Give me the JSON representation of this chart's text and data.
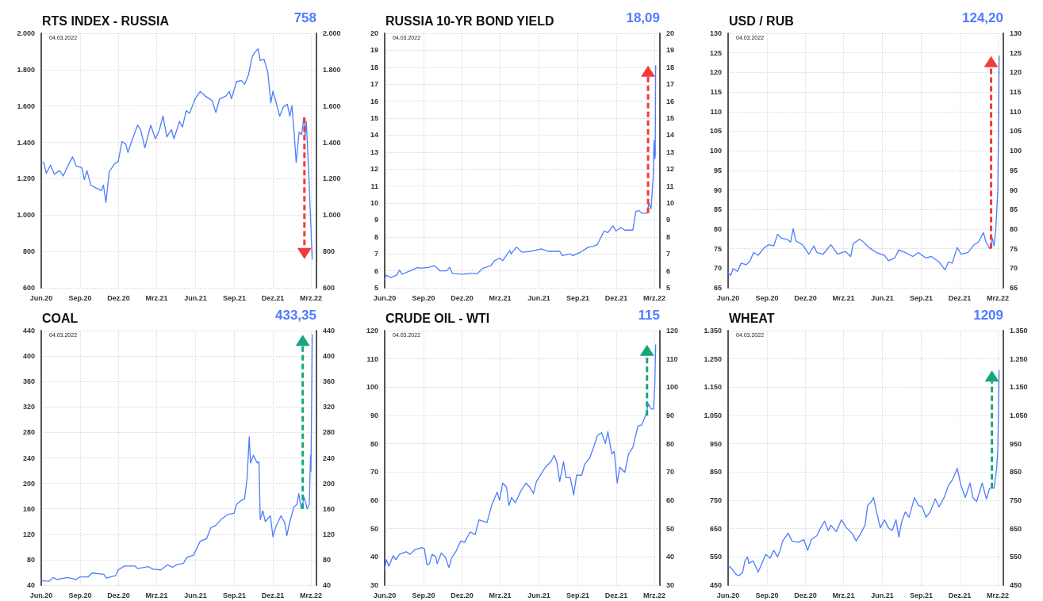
{
  "chart_data": [
    {
      "type": "line",
      "title": "RTS INDEX - RUSSIA",
      "annotations": [
        "758",
        "04.03.2022"
      ],
      "grid": true,
      "xlim": [
        "2020-06-01",
        "2022-03-14"
      ],
      "xticks": [
        {
          "value": "2020-06-01",
          "label": "Jun.20"
        },
        {
          "value": "2020-09-01",
          "label": "Sep.20"
        },
        {
          "value": "2020-12-01",
          "label": "Dez.20"
        },
        {
          "value": "2021-03-01",
          "label": "Mrz.21"
        },
        {
          "value": "2021-06-01",
          "label": "Jun.21"
        },
        {
          "value": "2021-09-01",
          "label": "Sep.21"
        },
        {
          "value": "2021-12-01",
          "label": "Dez.21"
        },
        {
          "value": "2022-03-01",
          "label": "Mrz.22"
        }
      ],
      "ylim": [
        600,
        2000
      ],
      "yticks": [
        600,
        800,
        {
          "value": 1000,
          "label": "1.000"
        },
        {
          "value": 1200,
          "label": "1.200"
        },
        {
          "value": 1400,
          "label": "1.400"
        },
        {
          "value": 1600,
          "label": "1.600"
        },
        {
          "value": 1800,
          "label": "1.800"
        },
        {
          "value": 2000,
          "label": "2.000"
        }
      ],
      "y2lim": [
        600,
        2000
      ],
      "y2ticks": [
        600,
        800,
        {
          "value": 1000,
          "label": "1.000"
        },
        {
          "value": 1200,
          "label": "1.200"
        },
        {
          "value": 1400,
          "label": "1.400"
        },
        {
          "value": 1600,
          "label": "1.600"
        },
        {
          "value": 1800,
          "label": "1.800"
        },
        {
          "value": 2000,
          "label": "2.000"
        }
      ],
      "series": [
        {
          "color": "#4d7cff",
          "x": [
            "2020-06-01",
            "2020-06-07",
            "2020-06-13",
            "2020-06-23",
            "2020-07-02",
            "2020-07-14",
            "2020-07-23",
            "2020-08-05",
            "2020-08-14",
            "2020-08-23",
            "2020-09-05",
            "2020-09-11",
            "2020-09-17",
            "2020-09-26",
            "2020-10-08",
            "2020-10-21",
            "2020-10-26",
            "2020-11-01",
            "2020-11-09",
            "2020-11-21",
            "2020-11-30",
            "2020-12-09",
            "2020-12-18",
            "2020-12-23",
            "2020-12-31",
            "2021-01-15",
            "2021-01-22",
            "2021-02-01",
            "2021-02-15",
            "2021-02-26",
            "2021-03-07",
            "2021-03-16",
            "2021-03-25",
            "2021-04-05",
            "2021-04-11",
            "2021-04-24",
            "2021-05-01",
            "2021-05-10",
            "2021-05-18",
            "2021-05-31",
            "2021-06-12",
            "2021-06-24",
            "2021-07-10",
            "2021-07-19",
            "2021-07-28",
            "2021-08-12",
            "2021-08-20",
            "2021-08-25",
            "2021-09-06",
            "2021-09-18",
            "2021-09-25",
            "2021-10-04",
            "2021-10-13",
            "2021-10-19",
            "2021-10-27",
            "2021-11-01",
            "2021-11-10",
            "2021-11-19",
            "2021-11-26",
            "2021-12-01",
            "2021-12-08",
            "2021-12-17",
            "2021-12-26",
            "2022-01-04",
            "2022-01-10",
            "2022-01-15",
            "2022-01-20",
            "2022-01-25",
            "2022-02-01",
            "2022-02-07",
            "2022-02-12",
            "2022-02-15",
            "2022-02-18",
            "2022-02-24",
            "2022-03-04"
          ],
          "values": [
            1290,
            1290,
            1230,
            1275,
            1225,
            1245,
            1215,
            1280,
            1320,
            1270,
            1260,
            1195,
            1245,
            1165,
            1150,
            1135,
            1165,
            1070,
            1240,
            1280,
            1295,
            1405,
            1390,
            1345,
            1400,
            1495,
            1470,
            1370,
            1495,
            1420,
            1465,
            1545,
            1430,
            1470,
            1420,
            1515,
            1485,
            1575,
            1560,
            1640,
            1680,
            1655,
            1630,
            1565,
            1640,
            1655,
            1680,
            1640,
            1735,
            1740,
            1720,
            1770,
            1870,
            1895,
            1915,
            1850,
            1857,
            1785,
            1617,
            1682,
            1624,
            1544,
            1595,
            1610,
            1544,
            1602,
            1457,
            1289,
            1457,
            1443,
            1537,
            1435,
            1515,
            1209,
            758
          ]
        }
      ]
    },
    {
      "type": "line",
      "title": "RUSSIA 10-YR BOND YIELD",
      "annotations": [
        "18,09",
        "04.03.2022"
      ],
      "grid": true,
      "xlim": [
        "2020-06-01",
        "2022-03-14"
      ],
      "xticks": [
        {
          "value": "2020-06-01",
          "label": "Jun.20"
        },
        {
          "value": "2020-09-01",
          "label": "Sep.20"
        },
        {
          "value": "2020-12-01",
          "label": "Dez.20"
        },
        {
          "value": "2021-03-01",
          "label": "Mrz.21"
        },
        {
          "value": "2021-06-01",
          "label": "Jun.21"
        },
        {
          "value": "2021-09-01",
          "label": "Sep.21"
        },
        {
          "value": "2021-12-01",
          "label": "Dez.21"
        },
        {
          "value": "2022-03-01",
          "label": "Mrz.22"
        }
      ],
      "ylim": [
        5,
        20
      ],
      "yticks": [
        5,
        6,
        7,
        8,
        9,
        10,
        11,
        12,
        13,
        14,
        15,
        16,
        17,
        18,
        19,
        20
      ],
      "y2lim": [
        5,
        20
      ],
      "y2ticks": [
        5,
        6,
        7,
        8,
        9,
        10,
        11,
        12,
        13,
        14,
        15,
        16,
        17,
        18,
        19,
        20
      ],
      "series": [
        {
          "color": "#4d7cff",
          "x": [
            "2020-06-01",
            "2020-06-05",
            "2020-06-15",
            "2020-06-30",
            "2020-07-06",
            "2020-07-12",
            "2020-07-31",
            "2020-08-18",
            "2020-08-24",
            "2020-09-12",
            "2020-09-27",
            "2020-10-10",
            "2020-10-25",
            "2020-11-02",
            "2020-11-08",
            "2020-12-04",
            "2020-12-19",
            "2021-01-07",
            "2021-01-19",
            "2021-02-07",
            "2021-02-16",
            "2021-02-28",
            "2021-03-07",
            "2021-03-24",
            "2021-03-27",
            "2021-04-09",
            "2021-04-22",
            "2021-05-13",
            "2021-06-07",
            "2021-06-22",
            "2021-07-20",
            "2021-07-26",
            "2021-08-14",
            "2021-08-20",
            "2021-09-07",
            "2021-09-26",
            "2021-10-08",
            "2021-10-17",
            "2021-11-02",
            "2021-11-11",
            "2021-11-23",
            "2021-11-30",
            "2021-12-12",
            "2021-12-21",
            "2022-01-09",
            "2022-01-16",
            "2022-01-24",
            "2022-01-30",
            "2022-02-12",
            "2022-02-16",
            "2022-02-21",
            "2022-02-26",
            "2022-02-28",
            "2022-03-02",
            "2022-03-03",
            "2022-03-04"
          ],
          "values": [
            5.5,
            5.75,
            5.6,
            5.75,
            6.05,
            5.8,
            6,
            6.2,
            6.15,
            6.2,
            6.3,
            6,
            6,
            6.2,
            5.85,
            5.8,
            5.85,
            5.85,
            6.15,
            6.3,
            6.6,
            6.75,
            6.6,
            7.2,
            7,
            7.4,
            7.1,
            7.15,
            7.3,
            7.15,
            7.15,
            6.9,
            7,
            6.9,
            7.1,
            7.4,
            7.45,
            7.55,
            8.35,
            8.25,
            8.65,
            8.35,
            8.55,
            8.4,
            8.4,
            9.5,
            9.55,
            9.4,
            9.4,
            10,
            9.65,
            11.5,
            13.7,
            12.6,
            12.8,
            18.09
          ]
        }
      ]
    },
    {
      "type": "line",
      "title": "USD / RUB",
      "annotations": [
        "124,20",
        "04.03.2022"
      ],
      "grid": true,
      "xlim": [
        "2020-06-01",
        "2022-03-14"
      ],
      "xticks": [
        {
          "value": "2020-06-01",
          "label": "Jun.20"
        },
        {
          "value": "2020-09-01",
          "label": "Sep.20"
        },
        {
          "value": "2020-12-01",
          "label": "Dez.20"
        },
        {
          "value": "2021-03-01",
          "label": "Mrz.21"
        },
        {
          "value": "2021-06-01",
          "label": "Jun.21"
        },
        {
          "value": "2021-09-01",
          "label": "Sep.21"
        },
        {
          "value": "2021-12-01",
          "label": "Dez.21"
        },
        {
          "value": "2022-03-01",
          "label": "Mrz.22"
        }
      ],
      "ylim": [
        65,
        130
      ],
      "yticks": [
        65,
        70,
        75,
        80,
        85,
        90,
        95,
        100,
        105,
        110,
        115,
        120,
        125,
        130
      ],
      "y2lim": [
        65,
        130
      ],
      "y2ticks": [
        65,
        70,
        75,
        80,
        85,
        90,
        95,
        100,
        105,
        110,
        115,
        120,
        125,
        130
      ],
      "series": [
        {
          "color": "#4d7cff",
          "x": [
            "2020-06-01",
            "2020-06-07",
            "2020-06-13",
            "2020-06-23",
            "2020-07-02",
            "2020-07-14",
            "2020-07-23",
            "2020-07-31",
            "2020-08-11",
            "2020-08-26",
            "2020-09-05",
            "2020-09-17",
            "2020-09-26",
            "2020-10-05",
            "2020-10-18",
            "2020-10-27",
            "2020-11-02",
            "2020-11-08",
            "2020-11-24",
            "2020-12-09",
            "2020-12-21",
            "2020-12-28",
            "2021-01-12",
            "2021-01-30",
            "2021-02-15",
            "2021-03-05",
            "2021-03-18",
            "2021-03-24",
            "2021-04-08",
            "2021-04-17",
            "2021-04-30",
            "2021-05-18",
            "2021-06-06",
            "2021-06-15",
            "2021-06-30",
            "2021-07-10",
            "2021-07-25",
            "2021-08-12",
            "2021-08-25",
            "2021-09-12",
            "2021-09-25",
            "2021-10-13",
            "2021-10-27",
            "2021-11-04",
            "2021-11-13",
            "2021-11-25",
            "2021-12-04",
            "2021-12-20",
            "2022-01-04",
            "2022-01-14",
            "2022-01-26",
            "2022-02-01",
            "2022-02-10",
            "2022-02-16",
            "2022-02-20",
            "2022-02-24",
            "2022-03-01",
            "2022-03-03",
            "2022-03-04"
          ],
          "values": [
            68.9,
            68.2,
            69.9,
            69.2,
            71.3,
            70.9,
            71.9,
            74,
            73.3,
            75.3,
            76,
            75.7,
            78.7,
            77.7,
            77.4,
            76.7,
            80.1,
            77,
            76,
            73.6,
            75.7,
            74,
            73.6,
            76,
            73.6,
            74.3,
            73,
            76.3,
            77.4,
            76.7,
            75.3,
            74,
            73.3,
            71.9,
            72.6,
            74.7,
            74,
            73,
            74,
            72.6,
            73,
            71.6,
            69.6,
            71.6,
            71.3,
            75.3,
            73.6,
            74,
            76,
            76.7,
            79.1,
            76.7,
            75,
            77.7,
            75.7,
            79.7,
            89.9,
            110.2,
            124.2
          ]
        }
      ]
    },
    {
      "type": "line",
      "title": "COAL",
      "annotations": [
        "433,35",
        "04.03.2022"
      ],
      "grid": true,
      "xlim": [
        "2020-06-01",
        "2022-03-14"
      ],
      "xticks": [
        {
          "value": "2020-06-01",
          "label": "Jun.20"
        },
        {
          "value": "2020-09-01",
          "label": "Sep.20"
        },
        {
          "value": "2020-12-01",
          "label": "Dez.20"
        },
        {
          "value": "2021-03-01",
          "label": "Mrz.21"
        },
        {
          "value": "2021-06-01",
          "label": "Jun.21"
        },
        {
          "value": "2021-09-01",
          "label": "Sep.21"
        },
        {
          "value": "2021-12-01",
          "label": "Dez.21"
        },
        {
          "value": "2022-03-01",
          "label": "Mrz.22"
        }
      ],
      "ylim": [
        40,
        440
      ],
      "yticks": [
        40,
        80,
        120,
        160,
        200,
        240,
        280,
        320,
        360,
        400,
        440
      ],
      "y2lim": [
        40,
        440
      ],
      "y2ticks": [
        40,
        80,
        120,
        160,
        200,
        240,
        280,
        320,
        360,
        400,
        440
      ],
      "series": [
        {
          "color": "#4d7cff",
          "x": [
            "2020-06-01",
            "2020-06-19",
            "2020-06-29",
            "2020-07-08",
            "2020-08-02",
            "2020-08-23",
            "2020-09-01",
            "2020-09-20",
            "2020-09-29",
            "2020-10-27",
            "2020-11-02",
            "2020-11-24",
            "2020-11-30",
            "2020-12-15",
            "2021-01-09",
            "2021-01-15",
            "2021-02-09",
            "2021-02-21",
            "2021-03-11",
            "2021-03-27",
            "2021-04-08",
            "2021-04-17",
            "2021-05-03",
            "2021-05-12",
            "2021-05-27",
            "2021-06-12",
            "2021-06-27",
            "2021-07-07",
            "2021-07-19",
            "2021-07-31",
            "2021-08-16",
            "2021-08-31",
            "2021-09-06",
            "2021-09-15",
            "2021-09-25",
            "2021-10-01",
            "2021-10-06",
            "2021-10-09",
            "2021-10-16",
            "2021-10-25",
            "2021-10-29",
            "2021-11-01",
            "2021-11-07",
            "2021-11-13",
            "2021-11-25",
            "2021-12-01",
            "2021-12-08",
            "2021-12-20",
            "2021-12-29",
            "2022-01-03",
            "2022-01-10",
            "2022-01-20",
            "2022-01-27",
            "2022-01-31",
            "2022-02-06",
            "2022-02-13",
            "2022-02-20",
            "2022-02-25",
            "2022-02-28",
            "2022-03-01",
            "2022-03-04"
          ],
          "values": [
            47,
            46,
            52,
            49,
            52,
            49,
            53,
            53,
            59,
            57,
            51,
            55,
            64,
            70,
            70,
            66,
            69,
            65,
            64,
            72,
            68,
            72,
            74,
            84,
            87,
            109,
            113,
            130,
            134,
            143,
            151,
            153,
            167,
            172,
            176,
            209,
            273,
            232,
            244,
            232,
            234,
            143,
            157,
            140,
            149,
            116,
            132,
            149,
            138,
            118,
            140,
            163,
            167,
            184,
            160,
            178,
            160,
            167,
            244,
            219,
            433.35
          ]
        }
      ]
    },
    {
      "type": "line",
      "title": "CRUDE OIL - WTI",
      "annotations": [
        "115",
        "04.03.2022"
      ],
      "grid": true,
      "xlim": [
        "2020-06-01",
        "2022-03-14"
      ],
      "xticks": [
        {
          "value": "2020-06-01",
          "label": "Jun.20"
        },
        {
          "value": "2020-09-01",
          "label": "Sep.20"
        },
        {
          "value": "2020-12-01",
          "label": "Dez.20"
        },
        {
          "value": "2021-03-01",
          "label": "Mrz.21"
        },
        {
          "value": "2021-06-01",
          "label": "Jun.21"
        },
        {
          "value": "2021-09-01",
          "label": "Sep.21"
        },
        {
          "value": "2021-12-01",
          "label": "Dez.21"
        },
        {
          "value": "2022-03-01",
          "label": "Mrz.22"
        }
      ],
      "ylim": [
        30,
        120
      ],
      "yticks": [
        30,
        40,
        50,
        60,
        70,
        80,
        90,
        100,
        110,
        120
      ],
      "y2lim": [
        30,
        120
      ],
      "y2ticks": [
        30,
        40,
        50,
        60,
        70,
        80,
        90,
        100,
        110,
        120
      ],
      "series": [
        {
          "color": "#4d7cff",
          "x": [
            "2020-06-01",
            "2020-06-05",
            "2020-06-11",
            "2020-06-21",
            "2020-06-27",
            "2020-07-06",
            "2020-07-22",
            "2020-07-31",
            "2020-08-12",
            "2020-08-28",
            "2020-09-03",
            "2020-09-09",
            "2020-09-15",
            "2020-09-21",
            "2020-09-30",
            "2020-10-03",
            "2020-10-13",
            "2020-10-22",
            "2020-10-31",
            "2020-11-06",
            "2020-11-16",
            "2020-11-28",
            "2020-12-07",
            "2020-12-20",
            "2021-01-01",
            "2021-01-10",
            "2021-01-29",
            "2021-02-10",
            "2021-02-22",
            "2021-02-28",
            "2021-03-07",
            "2021-03-16",
            "2021-03-22",
            "2021-03-28",
            "2021-04-06",
            "2021-04-19",
            "2021-05-01",
            "2021-05-10",
            "2021-05-19",
            "2021-05-26",
            "2021-06-16",
            "2021-06-29",
            "2021-07-07",
            "2021-07-13",
            "2021-07-20",
            "2021-07-29",
            "2021-08-04",
            "2021-08-14",
            "2021-08-22",
            "2021-08-29",
            "2021-09-10",
            "2021-09-17",
            "2021-09-29",
            "2021-10-08",
            "2021-10-17",
            "2021-10-27",
            "2021-11-05",
            "2021-11-11",
            "2021-11-20",
            "2021-11-26",
            "2021-12-03",
            "2021-12-09",
            "2021-12-21",
            "2021-12-30",
            "2022-01-09",
            "2022-01-21",
            "2022-01-30",
            "2022-02-08",
            "2022-02-15",
            "2022-02-21",
            "2022-02-27",
            "2022-03-02",
            "2022-03-03",
            "2022-03-04"
          ],
          "values": [
            35.8,
            39,
            36.7,
            40.4,
            39,
            40.9,
            41.8,
            40.9,
            42.6,
            43.3,
            42.8,
            37.2,
            37.6,
            40.9,
            40,
            37.6,
            41.4,
            40,
            36.2,
            39.5,
            41.8,
            45.6,
            45.1,
            48.8,
            47.9,
            53.1,
            52.1,
            58.7,
            62.9,
            60,
            66.1,
            64.7,
            58.2,
            61,
            59.1,
            63.3,
            66.1,
            64.7,
            62.4,
            66.6,
            71.7,
            73.6,
            75.9,
            73.6,
            66.6,
            73.6,
            68,
            68,
            61.9,
            68.9,
            68.9,
            72.7,
            75,
            78.7,
            82.9,
            83.9,
            80.1,
            84.3,
            76.4,
            77.3,
            66.1,
            71.7,
            69.9,
            76.4,
            78.7,
            86.2,
            86.7,
            89.9,
            94.1,
            92.3,
            92.3,
            100.7,
            108.1,
            115
          ]
        }
      ]
    },
    {
      "type": "line",
      "title": "WHEAT",
      "annotations": [
        "1209",
        "04.03.2022"
      ],
      "grid": true,
      "xlim": [
        "2020-06-01",
        "2022-03-14"
      ],
      "xticks": [
        {
          "value": "2020-06-01",
          "label": "Jun.20"
        },
        {
          "value": "2020-09-01",
          "label": "Sep.20"
        },
        {
          "value": "2020-12-01",
          "label": "Dez.20"
        },
        {
          "value": "2021-03-01",
          "label": "Mrz.21"
        },
        {
          "value": "2021-06-01",
          "label": "Jun.21"
        },
        {
          "value": "2021-09-01",
          "label": "Sep.21"
        },
        {
          "value": "2021-12-01",
          "label": "Dez.21"
        },
        {
          "value": "2022-03-01",
          "label": "Mrz.22"
        }
      ],
      "ylim": [
        450,
        1350
      ],
      "yticks": [
        450,
        550,
        650,
        750,
        850,
        950,
        {
          "value": 1050,
          "label": "1.050"
        },
        {
          "value": 1150,
          "label": "1.150"
        },
        {
          "value": 1250,
          "label": "1.250"
        },
        {
          "value": 1350,
          "label": "1.350"
        }
      ],
      "y2lim": [
        450,
        1350
      ],
      "y2ticks": [
        450,
        550,
        650,
        750,
        850,
        950,
        {
          "value": 1050,
          "label": "1.050"
        },
        {
          "value": 1150,
          "label": "1.150"
        },
        {
          "value": 1250,
          "label": "1.250"
        },
        {
          "value": 1350,
          "label": "1.350"
        }
      ],
      "series": [
        {
          "color": "#4d7cff",
          "x": [
            "2020-06-01",
            "2020-06-10",
            "2020-06-19",
            "2020-06-26",
            "2020-07-05",
            "2020-07-11",
            "2020-07-17",
            "2020-07-20",
            "2020-07-30",
            "2020-08-11",
            "2020-08-20",
            "2020-08-29",
            "2020-09-08",
            "2020-09-17",
            "2020-09-26",
            "2020-10-02",
            "2020-10-08",
            "2020-10-21",
            "2020-10-30",
            "2020-11-14",
            "2020-11-27",
            "2020-12-06",
            "2020-12-15",
            "2020-12-28",
            "2021-01-06",
            "2021-01-15",
            "2021-01-24",
            "2021-01-30",
            "2021-02-12",
            "2021-02-24",
            "2021-03-08",
            "2021-03-21",
            "2021-03-31",
            "2021-04-11",
            "2021-04-21",
            "2021-04-27",
            "2021-05-06",
            "2021-05-11",
            "2021-05-18",
            "2021-05-27",
            "2021-06-06",
            "2021-06-15",
            "2021-06-24",
            "2021-07-03",
            "2021-07-10",
            "2021-07-16",
            "2021-07-25",
            "2021-08-03",
            "2021-08-16",
            "2021-08-25",
            "2021-09-03",
            "2021-09-12",
            "2021-09-22",
            "2021-10-04",
            "2021-10-13",
            "2021-10-25",
            "2021-11-04",
            "2021-11-13",
            "2021-11-25",
            "2021-12-03",
            "2021-12-14",
            "2021-12-25",
            "2022-01-01",
            "2022-01-10",
            "2022-01-23",
            "2022-02-02",
            "2022-02-10",
            "2022-02-20",
            "2022-02-26",
            "2022-03-01",
            "2022-03-04"
          ],
          "values": [
            520,
            508,
            489,
            483,
            494,
            536,
            550,
            527,
            536,
            496,
            527,
            559,
            545,
            573,
            550,
            573,
            606,
            634,
            606,
            601,
            611,
            573,
            611,
            625,
            653,
            676,
            643,
            662,
            639,
            681,
            653,
            634,
            606,
            634,
            662,
            732,
            746,
            760,
            709,
            653,
            681,
            653,
            643,
            681,
            620,
            671,
            709,
            690,
            760,
            732,
            727,
            690,
            709,
            755,
            727,
            760,
            802,
            821,
            863,
            807,
            760,
            811,
            760,
            746,
            811,
            755,
            793,
            793,
            858,
            933,
            1209
          ]
        }
      ]
    }
  ]
}
